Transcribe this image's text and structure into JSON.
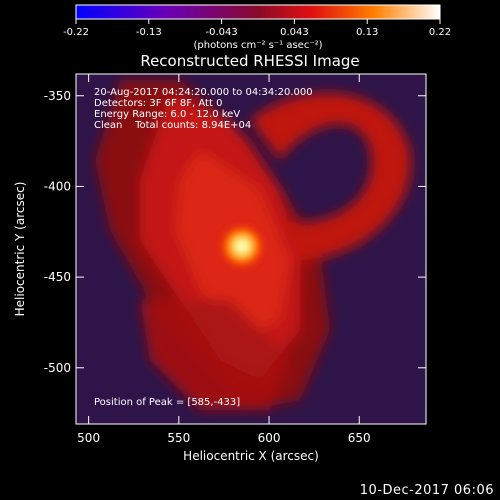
{
  "chart_data": {
    "type": "heatmap",
    "title": "Reconstructed RHESSI Image",
    "xlabel": "Heliocentric X (arcsec)",
    "ylabel": "Heliocentric Y (arcsec)",
    "xlim": [
      493,
      687
    ],
    "ylim": [
      -531,
      -338
    ],
    "xticks": [
      500,
      550,
      600,
      650
    ],
    "yticks": [
      -350,
      -400,
      -450,
      -500
    ],
    "colorbar": {
      "ticks": [
        "-0.22",
        "-0.13",
        "-0.043",
        "0.043",
        "0.13",
        "0.22"
      ],
      "range": [
        -0.22,
        0.22
      ],
      "label": "(photons cm⁻² s⁻¹ asec⁻²)",
      "colormap": "blue-purple-red-yellow-white"
    },
    "annotations": {
      "time_range": "20-Aug-2017 04:24:20.000 to 04:34:20.000",
      "detectors": "Detectors: 3F 6F 8F, Att 0",
      "energy": "Energy Range: 6.0 - 12.0 keV",
      "clean": "Clean    Total counts: 8.94E+04",
      "peak": "Position of Peak = [585,-433]"
    },
    "peak_position": [
      585,
      -433
    ],
    "features": [
      {
        "kind": "peak",
        "x": 585,
        "y": -433,
        "intensity": 1.0
      },
      {
        "kind": "arm",
        "from": [
          520,
          -360
        ],
        "to": [
          650,
          -500
        ],
        "intensity": 0.6
      },
      {
        "kind": "ring",
        "center": [
          640,
          -395
        ],
        "outer": 40,
        "inner": 25,
        "intensity": 0.55
      }
    ]
  },
  "footer_date": "10-Dec-2017 06:06"
}
